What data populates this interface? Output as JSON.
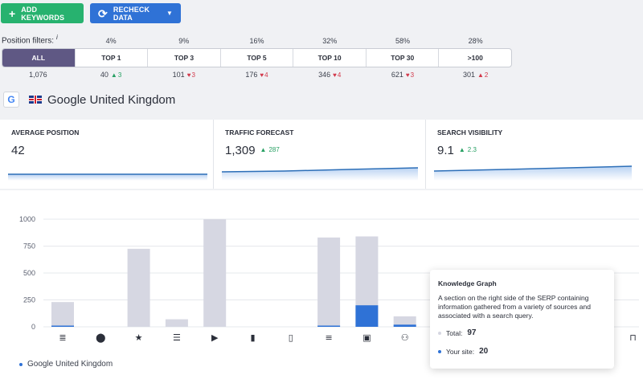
{
  "toolbar": {
    "add_keywords_label": "ADD KEYWORDS",
    "recheck_label": "RECHECK DATA"
  },
  "filters": {
    "label": "Position filters:",
    "info": "i",
    "items": [
      {
        "label": "ALL",
        "pct": "",
        "count": "1,076",
        "delta": "",
        "dir": ""
      },
      {
        "label": "TOP 1",
        "pct": "4%",
        "count": "40",
        "delta": "3",
        "dir": "up"
      },
      {
        "label": "TOP 3",
        "pct": "9%",
        "count": "101",
        "delta": "3",
        "dir": "down"
      },
      {
        "label": "TOP 5",
        "pct": "16%",
        "count": "176",
        "delta": "4",
        "dir": "down"
      },
      {
        "label": "TOP 10",
        "pct": "32%",
        "count": "346",
        "delta": "4",
        "dir": "down"
      },
      {
        "label": "TOP 30",
        "pct": "58%",
        "count": "621",
        "delta": "3",
        "dir": "down"
      },
      {
        "label": ">100",
        "pct": "28%",
        "count": "301",
        "delta": "2",
        "dir": "down"
      }
    ]
  },
  "engine": {
    "logo": "G",
    "title": "Google United Kingdom"
  },
  "cards": [
    {
      "title": "AVERAGE POSITION",
      "value": "42",
      "delta": ""
    },
    {
      "title": "TRAFFIC FORECAST",
      "value": "1,309",
      "delta": "287"
    },
    {
      "title": "SEARCH VISIBILITY",
      "value": "9.1",
      "delta": "2.3"
    }
  ],
  "colors": {
    "total": "#d6d7e2",
    "site": "#2f72d6",
    "up": "#27a063",
    "down": "#d2384a"
  },
  "chart_data": {
    "type": "bar",
    "categories": [
      "featured-snippet-icon",
      "local-pack-icon",
      "reviews-icon",
      "news-icon",
      "video-icon",
      "carousel-icon",
      "images-strip-icon",
      "list-icon",
      "image-icon",
      "knowledge-graph-icon",
      "",
      "",
      "",
      "",
      "",
      "hotel-icon"
    ],
    "series": [
      {
        "name": "Total",
        "values": [
          230,
          0,
          725,
          70,
          1000,
          0,
          0,
          830,
          840,
          97,
          0,
          0,
          0,
          0,
          0,
          0
        ]
      },
      {
        "name": "Your site",
        "values": [
          8,
          0,
          0,
          0,
          0,
          0,
          0,
          5,
          200,
          20,
          0,
          0,
          0,
          0,
          0,
          0
        ]
      }
    ],
    "yticks": [
      "0",
      "250",
      "500",
      "750",
      "1000"
    ],
    "ylim": [
      0,
      1000
    ],
    "legend": "Google United Kingdom"
  },
  "tooltip": {
    "title": "Knowledge Graph",
    "description": "A section on the right side of the SERP containing information gathered from a variety of sources and associated with a search query.",
    "total_label": "Total:",
    "total_value": "97",
    "site_label": "Your site:",
    "site_value": "20"
  }
}
